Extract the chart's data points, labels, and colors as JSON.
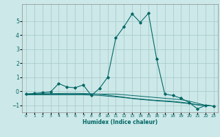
{
  "title": "",
  "xlabel": "Humidex (Indice chaleur)",
  "ylabel": "",
  "bg_color": "#cce8e8",
  "grid_color": "#aacccc",
  "line_color": "#006666",
  "xlim": [
    -0.5,
    23.5
  ],
  "ylim": [
    -1.5,
    6.2
  ],
  "xticks": [
    0,
    1,
    2,
    3,
    4,
    5,
    6,
    7,
    8,
    9,
    10,
    11,
    12,
    13,
    14,
    15,
    16,
    17,
    18,
    19,
    20,
    21,
    22,
    23
  ],
  "yticks": [
    -1,
    0,
    1,
    2,
    3,
    4,
    5
  ],
  "series": [
    [
      0,
      -0.2
    ],
    [
      1,
      -0.15
    ],
    [
      2,
      -0.1
    ],
    [
      3,
      -0.05
    ],
    [
      4,
      0.55
    ],
    [
      5,
      0.3
    ],
    [
      6,
      0.25
    ],
    [
      7,
      0.45
    ],
    [
      8,
      -0.3
    ],
    [
      9,
      0.2
    ],
    [
      10,
      1.0
    ],
    [
      11,
      3.8
    ],
    [
      12,
      4.6
    ],
    [
      13,
      5.5
    ],
    [
      14,
      4.9
    ],
    [
      15,
      5.55
    ],
    [
      16,
      2.3
    ],
    [
      17,
      -0.2
    ],
    [
      18,
      -0.3
    ],
    [
      19,
      -0.5
    ],
    [
      20,
      -0.8
    ],
    [
      21,
      -1.25
    ],
    [
      22,
      -1.0
    ],
    [
      23,
      -1.05
    ]
  ],
  "series2": [
    [
      0,
      -0.2
    ],
    [
      1,
      -0.2
    ],
    [
      2,
      -0.2
    ],
    [
      3,
      -0.2
    ],
    [
      4,
      -0.2
    ],
    [
      5,
      -0.2
    ],
    [
      6,
      -0.2
    ],
    [
      7,
      -0.2
    ],
    [
      8,
      -0.2
    ],
    [
      9,
      -0.2
    ],
    [
      10,
      -0.2
    ],
    [
      11,
      -0.2
    ],
    [
      12,
      -0.25
    ],
    [
      13,
      -0.3
    ],
    [
      14,
      -0.35
    ],
    [
      15,
      -0.4
    ],
    [
      16,
      -0.45
    ],
    [
      17,
      -0.5
    ],
    [
      18,
      -0.55
    ],
    [
      19,
      -0.6
    ],
    [
      20,
      -0.7
    ],
    [
      21,
      -0.85
    ],
    [
      22,
      -1.0
    ],
    [
      23,
      -1.05
    ]
  ],
  "series3": [
    [
      0,
      -0.2
    ],
    [
      1,
      -0.19
    ],
    [
      2,
      -0.18
    ],
    [
      3,
      -0.17
    ],
    [
      4,
      -0.16
    ],
    [
      5,
      -0.15
    ],
    [
      6,
      -0.15
    ],
    [
      7,
      -0.16
    ],
    [
      8,
      -0.18
    ],
    [
      9,
      -0.22
    ],
    [
      10,
      -0.28
    ],
    [
      11,
      -0.35
    ],
    [
      12,
      -0.42
    ],
    [
      13,
      -0.5
    ],
    [
      14,
      -0.55
    ],
    [
      15,
      -0.6
    ],
    [
      16,
      -0.65
    ],
    [
      17,
      -0.68
    ],
    [
      18,
      -0.72
    ],
    [
      19,
      -0.78
    ],
    [
      20,
      -0.85
    ],
    [
      21,
      -0.95
    ],
    [
      22,
      -1.0
    ],
    [
      23,
      -1.05
    ]
  ],
  "series4": [
    [
      0,
      -0.25
    ],
    [
      1,
      -0.25
    ],
    [
      2,
      -0.25
    ],
    [
      3,
      -0.25
    ],
    [
      4,
      -0.25
    ],
    [
      5,
      -0.25
    ],
    [
      6,
      -0.25
    ],
    [
      7,
      -0.25
    ],
    [
      8,
      -0.28
    ],
    [
      9,
      -0.3
    ],
    [
      10,
      -0.35
    ],
    [
      11,
      -0.4
    ],
    [
      12,
      -0.45
    ],
    [
      13,
      -0.52
    ],
    [
      14,
      -0.58
    ],
    [
      15,
      -0.63
    ],
    [
      16,
      -0.68
    ],
    [
      17,
      -0.72
    ],
    [
      18,
      -0.76
    ],
    [
      19,
      -0.82
    ],
    [
      20,
      -0.88
    ],
    [
      21,
      -0.97
    ],
    [
      22,
      -1.02
    ],
    [
      23,
      -1.05
    ]
  ]
}
